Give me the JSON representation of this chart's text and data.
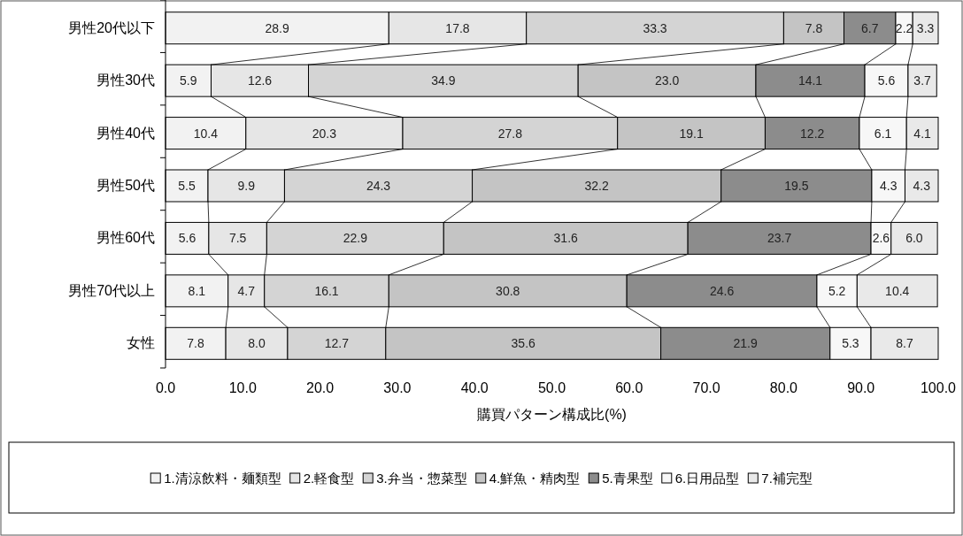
{
  "chart_data": {
    "type": "bar",
    "orientation": "horizontal",
    "stacked": true,
    "xlabel": "購買パターン構成比(%)",
    "categories": [
      "男性20代以下",
      "男性30代",
      "男性40代",
      "男性50代",
      "男性60代",
      "男性70代以上",
      "女性"
    ],
    "xlim": [
      0,
      100
    ],
    "xticks": [
      {
        "value": 0,
        "label": "0.0"
      },
      {
        "value": 10,
        "label": "10.0"
      },
      {
        "value": 20,
        "label": "20.0"
      },
      {
        "value": 30,
        "label": "30.0"
      },
      {
        "value": 40,
        "label": "40.0"
      },
      {
        "value": 50,
        "label": "50.0"
      },
      {
        "value": 60,
        "label": "60.0"
      },
      {
        "value": 70,
        "label": "70.0"
      },
      {
        "value": 80,
        "label": "80.0"
      },
      {
        "value": 90,
        "label": "90.0"
      },
      {
        "value": 100,
        "label": "100.0"
      }
    ],
    "legend": "bottom",
    "grid": false,
    "series": [
      {
        "name": "1.清涼飲料・麺類型",
        "color": "#f2f2f2",
        "values": [
          28.9,
          5.9,
          10.4,
          5.5,
          5.6,
          8.1,
          7.8
        ],
        "value_labels": [
          "28.9",
          "5.9",
          "10.4",
          "5.5",
          "5.6",
          "8.1",
          "7.8"
        ]
      },
      {
        "name": "2.軽食型",
        "color": "#e6e6e6",
        "values": [
          17.8,
          12.6,
          20.3,
          9.9,
          7.5,
          4.7,
          8.0
        ],
        "value_labels": [
          "17.8",
          "12.6",
          "20.3",
          "9.9",
          "7.5",
          "4.7",
          "8.0"
        ]
      },
      {
        "name": "3.弁当・惣菜型",
        "color": "#d4d4d4",
        "values": [
          33.3,
          34.9,
          27.8,
          24.3,
          22.9,
          16.1,
          12.7
        ],
        "value_labels": [
          "33.3",
          "34.9",
          "27.8",
          "24.3",
          "22.9",
          "16.1",
          "12.7"
        ]
      },
      {
        "name": "4.鮮魚・精肉型",
        "color": "#c4c4c4",
        "values": [
          7.8,
          23.0,
          19.1,
          32.2,
          31.6,
          30.8,
          35.6
        ],
        "value_labels": [
          "7.8",
          "23.0",
          "19.1",
          "32.2",
          "31.6",
          "30.8",
          "35.6"
        ]
      },
      {
        "name": "5.青果型",
        "color": "#8c8c8c",
        "values": [
          6.7,
          14.1,
          12.2,
          19.5,
          23.7,
          24.6,
          21.9
        ],
        "value_labels": [
          "6.7",
          "14.1",
          "12.2",
          "19.5",
          "23.7",
          "24.6",
          "21.9"
        ]
      },
      {
        "name": "6.日用品型",
        "color": "#f7f7f7",
        "values": [
          2.2,
          5.6,
          6.1,
          4.3,
          2.6,
          5.2,
          5.3
        ],
        "value_labels": [
          "2.2",
          "5.6",
          "6.1",
          "4.3",
          "2.6",
          "5.2",
          "5.3"
        ]
      },
      {
        "name": "7.補完型",
        "color": "#e9e9e9",
        "values": [
          3.3,
          3.7,
          4.1,
          4.3,
          6.0,
          10.4,
          8.7
        ],
        "value_labels": [
          "3.3",
          "3.7",
          "4.1",
          "4.3",
          "6.0",
          "10.4",
          "8.7"
        ]
      }
    ]
  }
}
